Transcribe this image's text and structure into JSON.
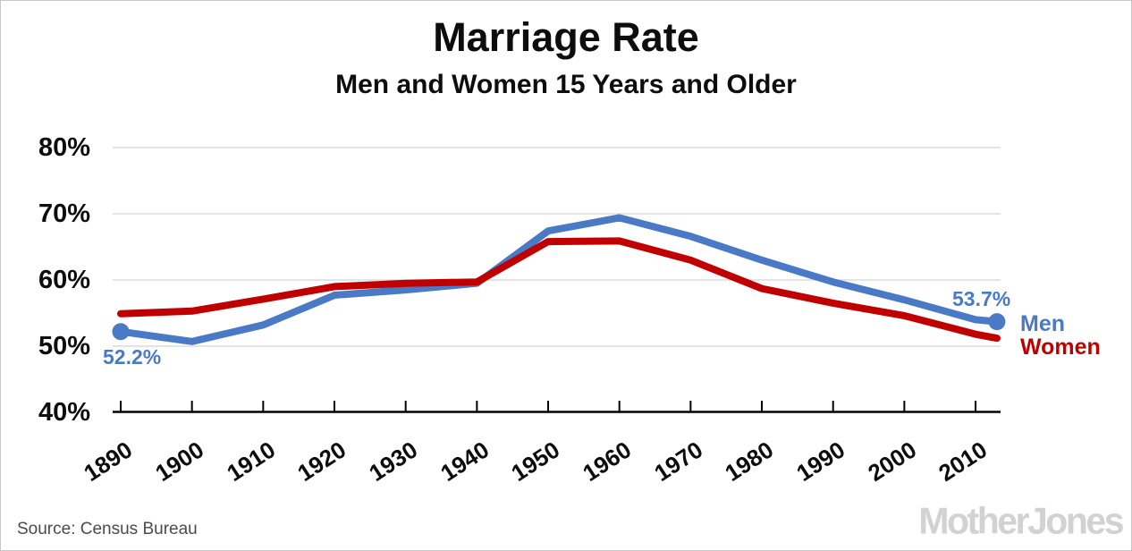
{
  "chart_data": {
    "type": "line",
    "title": "Marriage Rate",
    "subtitle": "Men and Women 15 Years and Older",
    "x": [
      1890,
      1900,
      1910,
      1920,
      1930,
      1940,
      1950,
      1960,
      1970,
      1980,
      1990,
      2000,
      2010,
      2013
    ],
    "series": [
      {
        "name": "Men",
        "color": "#4a79c5",
        "marker_points": [
          "first",
          "last"
        ],
        "values": [
          52.2,
          50.7,
          53.2,
          57.7,
          58.5,
          59.5,
          67.4,
          69.4,
          66.6,
          63.0,
          59.7,
          57.0,
          54.0,
          53.7
        ]
      },
      {
        "name": "Women",
        "color": "#c00000",
        "marker_points": [],
        "values": [
          54.9,
          55.3,
          57.1,
          59.0,
          59.5,
          59.7,
          65.8,
          65.9,
          63.0,
          58.7,
          56.5,
          54.6,
          51.8,
          51.2
        ]
      }
    ],
    "ylim": [
      40,
      80
    ],
    "xlim": [
      1888,
      2016
    ],
    "yticks": [
      80,
      70,
      60,
      50,
      40
    ],
    "ytick_labels": [
      "80%",
      "70%",
      "60%",
      "50%",
      "40%"
    ],
    "xticks": [
      1890,
      1900,
      1910,
      1920,
      1930,
      1940,
      1950,
      1960,
      1970,
      1980,
      1990,
      2000,
      2010
    ],
    "xtick_labels": [
      "1890",
      "1900",
      "1910",
      "1920",
      "1930",
      "1940",
      "1950",
      "1960",
      "1970",
      "1980",
      "1990",
      "2000",
      "2010"
    ],
    "grid": "horizontal",
    "grid_color": "#dcdcdc",
    "axis_color": "#000000",
    "legend_position": "end-of-line",
    "annotations": {
      "first_point_label": "52.2%",
      "last_point_label": "53.7%"
    }
  },
  "footer": {
    "source": "Source: Census Bureau",
    "logo": "MotherJones"
  }
}
